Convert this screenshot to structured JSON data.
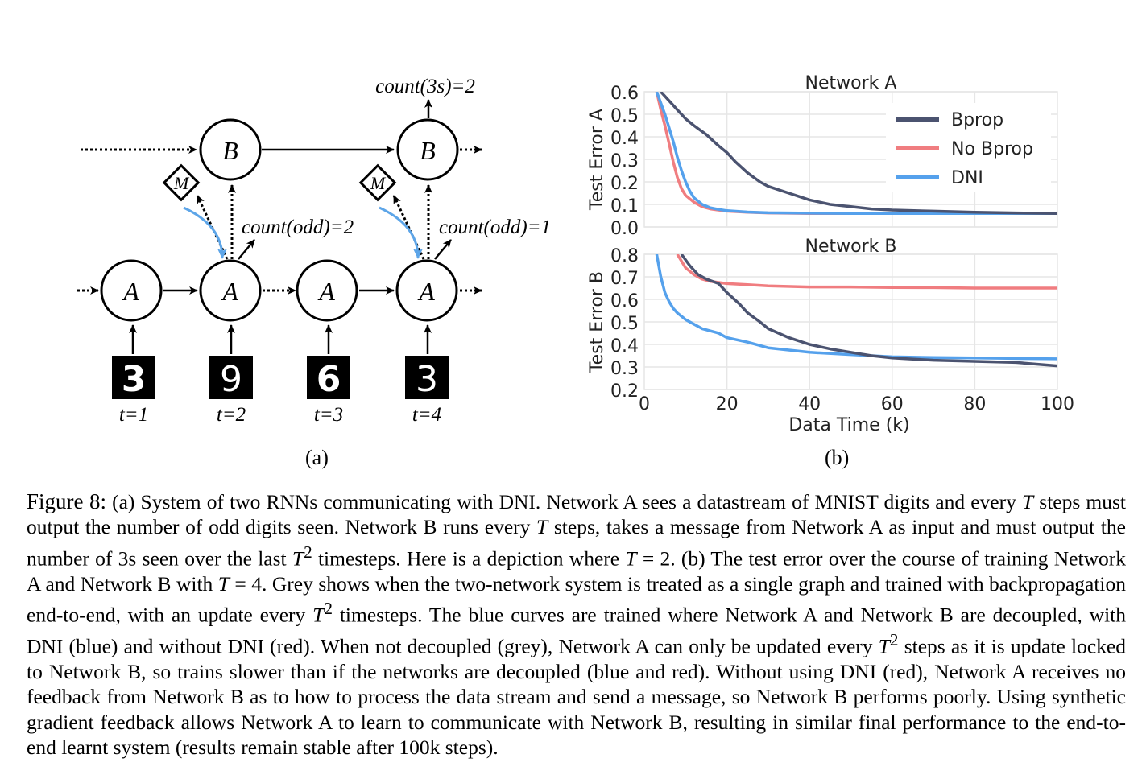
{
  "diagram": {
    "count_3s_label": "count(3s)=2",
    "count_odd_label_1": "count(odd)=2",
    "count_odd_label_2": "count(odd)=1",
    "node_a_label": "A",
    "node_b_label": "B",
    "node_m_label": "M",
    "digits": [
      "3",
      "9",
      "6",
      "3"
    ],
    "time_labels": [
      "t=1",
      "t=2",
      "t=3",
      "t=4"
    ],
    "sublabel": "(a)",
    "colors": {
      "message_arrow": "#5da5e8"
    }
  },
  "plots": {
    "sublabel": "(b)",
    "legend": [
      {
        "label": "Bprop",
        "color": "#4b5370"
      },
      {
        "label": "No Bprop",
        "color": "#f07d80"
      },
      {
        "label": "DNI",
        "color": "#55a1ec"
      }
    ]
  },
  "chart_data": [
    {
      "type": "line",
      "title": "Network A",
      "xlabel": "",
      "ylabel": "Test Error A",
      "xlim": [
        0,
        100
      ],
      "ylim": [
        0,
        0.6
      ],
      "yticks": [
        "0.6",
        "0.5",
        "0.4",
        "0.3",
        "0.2",
        "0.1",
        "0.0"
      ],
      "grid": true,
      "legend_position": "top-right",
      "series": [
        {
          "name": "Bprop",
          "color": "#4b5370",
          "x": [
            4,
            6,
            8,
            10,
            12,
            15,
            18,
            20,
            22,
            25,
            28,
            30,
            35,
            40,
            45,
            50,
            55,
            60,
            70,
            80,
            90,
            100
          ],
          "y": [
            0.6,
            0.56,
            0.52,
            0.48,
            0.45,
            0.41,
            0.36,
            0.33,
            0.29,
            0.24,
            0.2,
            0.18,
            0.15,
            0.12,
            0.1,
            0.09,
            0.08,
            0.075,
            0.07,
            0.065,
            0.062,
            0.06
          ]
        },
        {
          "name": "No Bprop",
          "color": "#f07d80",
          "x": [
            3,
            4,
            5,
            6,
            7,
            8,
            9,
            10,
            12,
            14,
            16,
            18,
            20,
            25,
            30,
            40,
            50,
            60,
            70,
            80,
            90,
            100
          ],
          "y": [
            0.6,
            0.52,
            0.45,
            0.37,
            0.29,
            0.22,
            0.17,
            0.14,
            0.11,
            0.09,
            0.08,
            0.075,
            0.07,
            0.065,
            0.062,
            0.06,
            0.06,
            0.06,
            0.06,
            0.06,
            0.06,
            0.06
          ]
        },
        {
          "name": "DNI",
          "color": "#55a1ec",
          "x": [
            3,
            4,
            5,
            6,
            7,
            8,
            9,
            10,
            11,
            12,
            14,
            16,
            18,
            20,
            25,
            30,
            40,
            50,
            60,
            70,
            80,
            90,
            100
          ],
          "y": [
            0.6,
            0.55,
            0.5,
            0.44,
            0.38,
            0.31,
            0.25,
            0.2,
            0.16,
            0.13,
            0.1,
            0.085,
            0.078,
            0.072,
            0.066,
            0.063,
            0.061,
            0.06,
            0.06,
            0.06,
            0.06,
            0.06,
            0.06
          ]
        }
      ]
    },
    {
      "type": "line",
      "title": "Network B",
      "xlabel": "Data Time (k)",
      "ylabel": "Test Error B",
      "xlim": [
        0,
        100
      ],
      "ylim": [
        0.2,
        0.8
      ],
      "xticks": [
        "0",
        "20",
        "40",
        "60",
        "80",
        "100"
      ],
      "yticks": [
        "0.8",
        "0.7",
        "0.6",
        "0.5",
        "0.4",
        "0.3",
        "0.2"
      ],
      "grid": true,
      "series": [
        {
          "name": "Bprop",
          "color": "#4b5370",
          "x": [
            9,
            11,
            13,
            15,
            18,
            20,
            23,
            25,
            28,
            30,
            35,
            40,
            45,
            50,
            55,
            60,
            65,
            70,
            80,
            90,
            100
          ],
          "y": [
            0.8,
            0.75,
            0.71,
            0.69,
            0.67,
            0.63,
            0.58,
            0.54,
            0.5,
            0.47,
            0.43,
            0.4,
            0.38,
            0.365,
            0.35,
            0.34,
            0.335,
            0.33,
            0.325,
            0.32,
            0.305
          ]
        },
        {
          "name": "No Bprop",
          "color": "#f07d80",
          "x": [
            8,
            10,
            12,
            14,
            16,
            18,
            20,
            25,
            30,
            40,
            50,
            60,
            70,
            80,
            90,
            100
          ],
          "y": [
            0.8,
            0.74,
            0.71,
            0.69,
            0.68,
            0.675,
            0.67,
            0.665,
            0.66,
            0.655,
            0.655,
            0.653,
            0.652,
            0.65,
            0.65,
            0.65
          ]
        },
        {
          "name": "DNI",
          "color": "#55a1ec",
          "x": [
            3,
            4,
            5,
            6,
            7,
            8,
            9,
            10,
            12,
            14,
            16,
            18,
            20,
            25,
            30,
            35,
            40,
            50,
            60,
            70,
            80,
            90,
            100
          ],
          "y": [
            0.8,
            0.7,
            0.63,
            0.59,
            0.56,
            0.54,
            0.525,
            0.51,
            0.49,
            0.47,
            0.46,
            0.45,
            0.43,
            0.41,
            0.385,
            0.375,
            0.365,
            0.355,
            0.345,
            0.342,
            0.34,
            0.338,
            0.336
          ]
        }
      ]
    }
  ],
  "caption": {
    "label": "Figure 8:",
    "text_1": "(a) System of two RNNs communicating with DNI. Network A sees a datastream of MNIST digits and every ",
    "T": "T",
    "text_2": " steps must output the number of odd digits seen. Network B runs every ",
    "text_3": " steps, takes a message from Network A as input and must output the number of 3s seen over the last ",
    "sup2": "2",
    "text_4": " timesteps. Here is a depiction where ",
    "eq_T2": " = 2. (b) The test error over the course of training Network A and Network B with ",
    "eq_T4": " = 4. Grey shows when the two-network system is treated as a single graph and trained with backpropagation end-to-end, with an update every ",
    "text_5": " timesteps. The blue curves are trained where Network A and Network B are decoupled, with DNI (blue) and without DNI (red). When not decoupled (grey), Network A can only be updated every ",
    "text_6": " steps as it is update locked to Network B, so trains slower than if the networks are decoupled (blue and red). Without using DNI (red), Network A receives no feedback from Network B as to how to process the data stream and send a message, so Network B performs poorly. Using synthetic gradient feedback allows Network A to learn to communicate with Network B, resulting in similar final performance to the end-to-end learnt system (results remain stable after 100k steps)."
  }
}
